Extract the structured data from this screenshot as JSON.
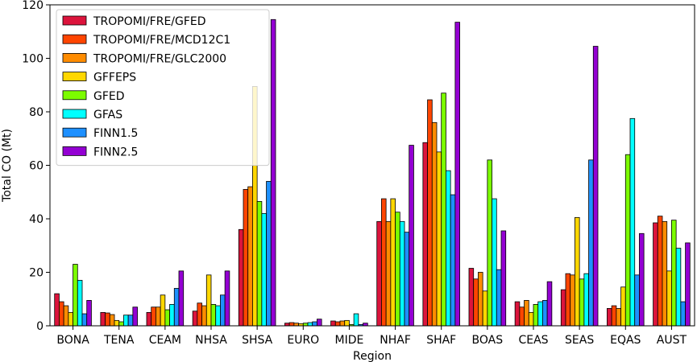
{
  "chart_data": {
    "type": "bar",
    "title": "",
    "xlabel": "Region",
    "ylabel": "Total CO (Mt)",
    "ylim": [
      0,
      120
    ],
    "yticks": [
      0,
      20,
      40,
      60,
      80,
      100,
      120
    ],
    "grid": false,
    "legend_position": "top-left",
    "categories": [
      "BONA",
      "TENA",
      "CEAM",
      "NHSA",
      "SHSA",
      "EURO",
      "MIDE",
      "NHAF",
      "SHAF",
      "BOAS",
      "CEAS",
      "SEAS",
      "EQAS",
      "AUST"
    ],
    "series": [
      {
        "name": "TROPOMI/FRE/GFED",
        "color": "#dc143c",
        "values": [
          12,
          5,
          5,
          5.5,
          36,
          1,
          1.8,
          39,
          68.5,
          21.5,
          9,
          13.5,
          6.5,
          38.5
        ]
      },
      {
        "name": "TROPOMI/FRE/MCD12C1",
        "color": "#ff4500",
        "values": [
          9,
          4.8,
          7,
          8.5,
          51,
          1.2,
          1.5,
          47.5,
          84.5,
          17.5,
          7,
          19.5,
          7.5,
          41
        ]
      },
      {
        "name": "TROPOMI/FRE/GLC2000",
        "color": "#ff8c00",
        "values": [
          7.5,
          4.2,
          7,
          7.5,
          52,
          1,
          1.8,
          39,
          76,
          20,
          9.5,
          19,
          6.5,
          39
        ]
      },
      {
        "name": "GFFEPS",
        "color": "#ffd700",
        "values": [
          5,
          2,
          11.5,
          19,
          89.5,
          0.8,
          2,
          47.5,
          65,
          13,
          5,
          40.5,
          14.5,
          20.5
        ]
      },
      {
        "name": "GFED",
        "color": "#7cfc00",
        "values": [
          23,
          1.5,
          6,
          8,
          46.5,
          1,
          0.5,
          42.5,
          87,
          62,
          8,
          17.5,
          64,
          39.5
        ]
      },
      {
        "name": "GFAS",
        "color": "#00ffff",
        "values": [
          17,
          4,
          8,
          7.5,
          42,
          1.2,
          4.5,
          39,
          58,
          47.5,
          9,
          19.5,
          77.5,
          29
        ]
      },
      {
        "name": "FINN1.5",
        "color": "#1e90ff",
        "values": [
          4.5,
          4,
          14,
          11.5,
          54,
          1.5,
          0.5,
          35,
          49,
          21,
          9.5,
          62,
          19,
          9
        ]
      },
      {
        "name": "FINN2.5",
        "color": "#9400d3",
        "values": [
          9.5,
          7,
          20.5,
          20.5,
          114.5,
          2.5,
          1,
          67.5,
          113.5,
          35.5,
          16.5,
          104.5,
          34.5,
          31
        ]
      }
    ]
  }
}
